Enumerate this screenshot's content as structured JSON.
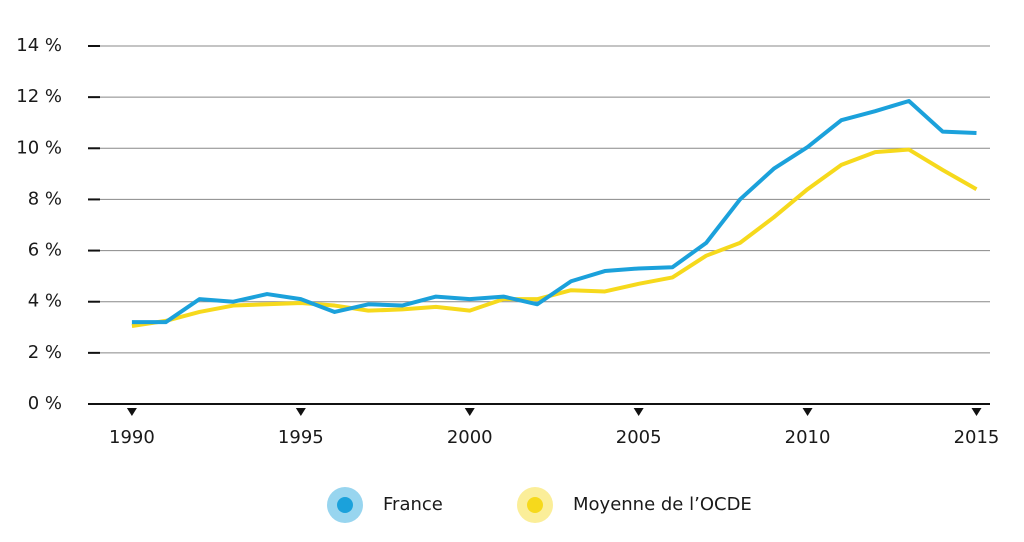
{
  "chart_data": {
    "type": "line",
    "x": [
      1990,
      1991,
      1992,
      1993,
      1994,
      1995,
      1996,
      1997,
      1998,
      1999,
      2000,
      2001,
      2002,
      2003,
      2004,
      2005,
      2006,
      2007,
      2008,
      2009,
      2010,
      2011,
      2012,
      2013,
      2014,
      2015
    ],
    "series": [
      {
        "name": "France",
        "color": "#1ba1db",
        "values": [
          3.2,
          3.2,
          4.1,
          4.0,
          4.3,
          4.1,
          3.6,
          3.9,
          3.85,
          4.2,
          4.1,
          4.2,
          3.9,
          4.8,
          5.2,
          5.3,
          5.35,
          6.3,
          8.0,
          9.2,
          10.05,
          11.1,
          11.45,
          11.85,
          10.65,
          10.6
        ]
      },
      {
        "name": "Moyenne de l’OCDE",
        "color": "#f6d91c",
        "values": [
          3.05,
          3.25,
          3.6,
          3.85,
          3.9,
          3.95,
          3.85,
          3.65,
          3.7,
          3.8,
          3.65,
          4.1,
          4.1,
          4.45,
          4.4,
          4.7,
          4.95,
          5.8,
          6.3,
          7.3,
          8.4,
          9.35,
          9.85,
          9.95,
          9.15,
          8.4
        ]
      }
    ],
    "xlim": [
      1988.7,
      2015.4
    ],
    "xticks": [
      1990,
      1995,
      2000,
      2005,
      2010,
      2015
    ],
    "ylim": [
      0,
      14
    ],
    "yticks": [
      {
        "value": 0,
        "label": "0 %"
      },
      {
        "value": 2,
        "label": "2 %"
      },
      {
        "value": 4,
        "label": "4 %"
      },
      {
        "value": 6,
        "label": "6 %"
      },
      {
        "value": 8,
        "label": "8 %"
      },
      {
        "value": 10,
        "label": "10 %"
      },
      {
        "value": 12,
        "label": "12 %"
      },
      {
        "value": 14,
        "label": "14 %"
      }
    ],
    "grid": true,
    "legend": "bottom"
  }
}
